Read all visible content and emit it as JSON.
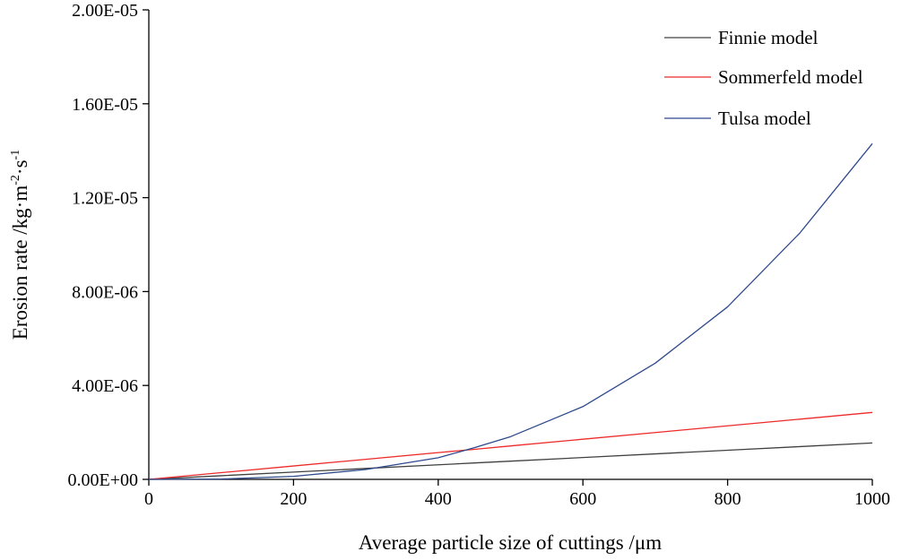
{
  "chart_data": {
    "type": "line",
    "title": "",
    "xlabel": "Average particle size of cuttings /μm",
    "ylabel": "Erosion rate /kg·m",
    "ylabel_sup1": "-2",
    "ylabel_mid": "·s",
    "ylabel_sup2": "-1",
    "xlim": [
      0,
      1000
    ],
    "ylim": [
      0,
      2e-05
    ],
    "x_ticks": [
      0,
      200,
      400,
      600,
      800,
      1000
    ],
    "x_tick_labels": [
      "0",
      "200",
      "400",
      "600",
      "800",
      "1000"
    ],
    "y_ticks": [
      0,
      4e-06,
      8e-06,
      1.2e-05,
      1.6e-05,
      2e-05
    ],
    "y_tick_labels": [
      "0.00E+00",
      "4.00E-06",
      "8.00E-06",
      "1.20E-05",
      "1.60E-05",
      "2.00E-05"
    ],
    "grid": false,
    "legend_position": "top-right",
    "x": [
      0,
      100,
      200,
      300,
      400,
      450,
      500,
      600,
      700,
      800,
      900,
      1000
    ],
    "series": [
      {
        "name": "Finnie model",
        "color": "#404040",
        "values": [
          0,
          1.55e-07,
          3.1e-07,
          4.65e-07,
          6.2e-07,
          6.98e-07,
          7.75e-07,
          9.3e-07,
          1.085e-06,
          1.24e-06,
          1.395e-06,
          1.55e-06
        ]
      },
      {
        "name": "Sommerfeld model",
        "color": "#ee2a2a",
        "values": [
          0,
          2.85e-07,
          5.7e-07,
          8.55e-07,
          1.14e-06,
          1.28e-06,
          1.425e-06,
          1.71e-06,
          1.995e-06,
          2.28e-06,
          2.565e-06,
          2.85e-06
        ]
      },
      {
        "name": "Tulsa model",
        "color": "#2e4a8c",
        "values": [
          0,
          1.43e-08,
          1.29e-07,
          4.2e-07,
          9.2e-07,
          1.35e-06,
          1.82e-06,
          3.1e-06,
          4.95e-06,
          7.35e-06,
          1.05e-05,
          1.43e-05
        ]
      }
    ]
  }
}
